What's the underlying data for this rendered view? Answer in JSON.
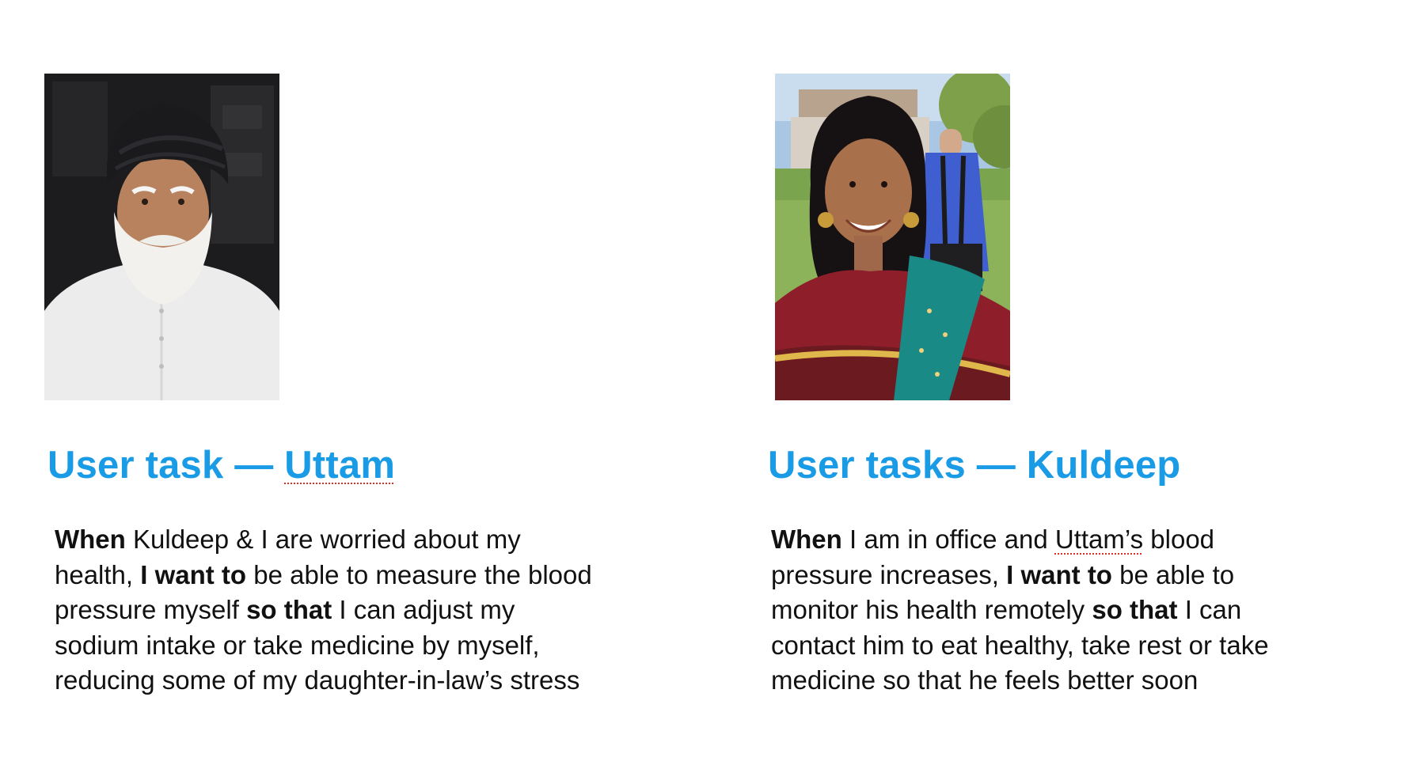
{
  "personas": {
    "uttam": {
      "photo_alt": "Uttam portrait",
      "title_prefix": "User task — ",
      "title_name": "Uttam",
      "story": {
        "line1": {
          "b1": "When",
          "t1": " Kuldeep & I are worried about my"
        },
        "line2": {
          "t1": "health, ",
          "b1": "I want to",
          "t2": " be able to measure the blood"
        },
        "line3": {
          "t1": "pressure myself ",
          "b1": "so that",
          "t2": " I can adjust my"
        },
        "line4": {
          "t1": "sodium intake or take medicine by myself,"
        },
        "line5": {
          "t1": "reducing some of my daughter-in-law’s stress"
        }
      }
    },
    "kuldeep": {
      "photo_alt": "Kuldeep portrait",
      "title_prefix": "User tasks — ",
      "title_name": "Kuldeep",
      "story": {
        "line1": {
          "b1": "When",
          "t1": " I am in office and ",
          "s1": "Uttam’s",
          "t2": " blood"
        },
        "line2": {
          "t1": "pressure increases, ",
          "b1": "I want to",
          "t2": " be able to"
        },
        "line3": {
          "t1": "monitor his health remotely ",
          "b1": "so that",
          "t2": " I can"
        },
        "line4": {
          "t1": "contact him to eat healthy, take rest or take"
        },
        "line5": {
          "t1": "medicine so that he feels better soon"
        }
      }
    }
  },
  "colors": {
    "title": "#1a9be6",
    "body_text": "#111111",
    "spellcheck_underline": "#d93025"
  }
}
